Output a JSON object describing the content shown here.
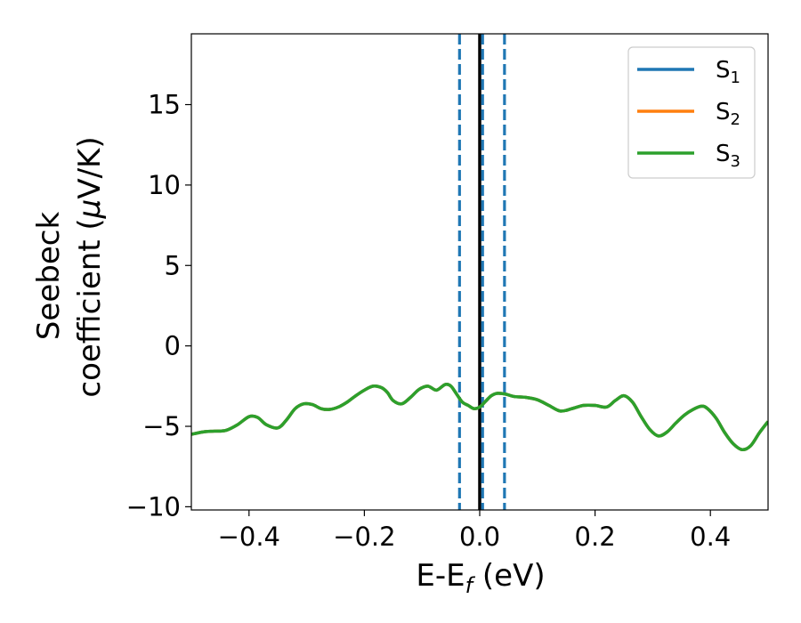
{
  "chart_data": {
    "type": "line",
    "title": "",
    "xlabel": {
      "main": "E-E",
      "sub": "f",
      "rest": " (eV)"
    },
    "ylabel": {
      "line1": "Seebeck",
      "line2": "coefficient  (",
      "mu": "μ",
      "line2_end": "V/K)"
    },
    "xlim": [
      -0.5,
      0.5
    ],
    "ylim": [
      -10.2,
      19.4
    ],
    "x_ticks": [
      -0.4,
      -0.2,
      0.0,
      0.2,
      0.4
    ],
    "x_tick_labels": [
      "−0.4",
      "−0.2",
      "0.0",
      "0.2",
      "0.4"
    ],
    "y_ticks": [
      -10,
      -5,
      0,
      5,
      10,
      15
    ],
    "y_tick_labels": [
      "−10",
      "−5",
      "0",
      "5",
      "10",
      "15"
    ],
    "grid": false,
    "legend_position": "top-right",
    "series": [
      {
        "name": "S",
        "sub": "1",
        "color": "#1f77b4",
        "x": [
          -0.5,
          -0.48,
          -0.46,
          -0.44,
          -0.42,
          -0.4,
          -0.385,
          -0.37,
          -0.35,
          -0.335,
          -0.32,
          -0.305,
          -0.29,
          -0.275,
          -0.26,
          -0.245,
          -0.23,
          -0.215,
          -0.2,
          -0.185,
          -0.17,
          -0.16,
          -0.15,
          -0.135,
          -0.12,
          -0.105,
          -0.09,
          -0.075,
          -0.06,
          -0.05,
          -0.04,
          -0.03,
          -0.02,
          -0.01,
          0.0,
          0.01,
          0.02,
          0.03,
          0.045,
          0.06,
          0.08,
          0.1,
          0.12,
          0.14,
          0.16,
          0.18,
          0.2,
          0.22,
          0.235,
          0.25,
          0.265,
          0.28,
          0.295,
          0.31,
          0.325,
          0.34,
          0.355,
          0.37,
          0.385,
          0.395,
          0.41,
          0.425,
          0.44,
          0.455,
          0.47,
          0.485,
          0.5
        ],
        "values": [
          -5.5,
          -5.35,
          -5.3,
          -5.25,
          -4.9,
          -4.4,
          -4.45,
          -4.9,
          -5.1,
          -4.6,
          -3.9,
          -3.6,
          -3.65,
          -3.9,
          -3.95,
          -3.8,
          -3.5,
          -3.1,
          -2.75,
          -2.5,
          -2.6,
          -2.9,
          -3.4,
          -3.6,
          -3.2,
          -2.7,
          -2.5,
          -2.75,
          -2.4,
          -2.5,
          -3.0,
          -3.5,
          -3.7,
          -3.9,
          -3.8,
          -3.45,
          -3.1,
          -2.95,
          -3.0,
          -3.15,
          -3.2,
          -3.35,
          -3.7,
          -4.05,
          -3.9,
          -3.7,
          -3.7,
          -3.8,
          -3.4,
          -3.1,
          -3.5,
          -4.4,
          -5.2,
          -5.6,
          -5.35,
          -4.8,
          -4.3,
          -3.95,
          -3.75,
          -3.9,
          -4.5,
          -5.4,
          -6.1,
          -6.45,
          -6.2,
          -5.4,
          -4.7
        ]
      },
      {
        "name": "S",
        "sub": "2",
        "color": "#ff7f0e",
        "x": [
          -0.5,
          -0.48,
          -0.46,
          -0.44,
          -0.42,
          -0.4,
          -0.385,
          -0.37,
          -0.35,
          -0.335,
          -0.32,
          -0.305,
          -0.29,
          -0.275,
          -0.26,
          -0.245,
          -0.23,
          -0.215,
          -0.2,
          -0.185,
          -0.17,
          -0.16,
          -0.15,
          -0.135,
          -0.12,
          -0.105,
          -0.09,
          -0.075,
          -0.06,
          -0.05,
          -0.04,
          -0.03,
          -0.02,
          -0.01,
          0.0,
          0.01,
          0.02,
          0.03,
          0.045,
          0.06,
          0.08,
          0.1,
          0.12,
          0.14,
          0.16,
          0.18,
          0.2,
          0.22,
          0.235,
          0.25,
          0.265,
          0.28,
          0.295,
          0.31,
          0.325,
          0.34,
          0.355,
          0.37,
          0.385,
          0.395,
          0.41,
          0.425,
          0.44,
          0.455,
          0.47,
          0.485,
          0.5
        ],
        "values": [
          -5.5,
          -5.35,
          -5.3,
          -5.25,
          -4.9,
          -4.4,
          -4.45,
          -4.9,
          -5.1,
          -4.6,
          -3.9,
          -3.6,
          -3.65,
          -3.9,
          -3.95,
          -3.8,
          -3.5,
          -3.1,
          -2.75,
          -2.5,
          -2.6,
          -2.9,
          -3.4,
          -3.6,
          -3.2,
          -2.7,
          -2.5,
          -2.75,
          -2.4,
          -2.5,
          -3.0,
          -3.5,
          -3.7,
          -3.9,
          -3.8,
          -3.45,
          -3.1,
          -2.95,
          -3.0,
          -3.15,
          -3.2,
          -3.35,
          -3.7,
          -4.05,
          -3.9,
          -3.7,
          -3.7,
          -3.8,
          -3.4,
          -3.1,
          -3.5,
          -4.4,
          -5.2,
          -5.6,
          -5.35,
          -4.8,
          -4.3,
          -3.95,
          -3.75,
          -3.9,
          -4.5,
          -5.4,
          -6.1,
          -6.45,
          -6.2,
          -5.4,
          -4.7
        ]
      },
      {
        "name": "S",
        "sub": "3",
        "color": "#2ca02c",
        "x": [
          -0.5,
          -0.48,
          -0.46,
          -0.44,
          -0.42,
          -0.4,
          -0.385,
          -0.37,
          -0.35,
          -0.335,
          -0.32,
          -0.305,
          -0.29,
          -0.275,
          -0.26,
          -0.245,
          -0.23,
          -0.215,
          -0.2,
          -0.185,
          -0.17,
          -0.16,
          -0.15,
          -0.135,
          -0.12,
          -0.105,
          -0.09,
          -0.075,
          -0.06,
          -0.05,
          -0.04,
          -0.03,
          -0.02,
          -0.01,
          0.0,
          0.01,
          0.02,
          0.03,
          0.045,
          0.06,
          0.08,
          0.1,
          0.12,
          0.14,
          0.16,
          0.18,
          0.2,
          0.22,
          0.235,
          0.25,
          0.265,
          0.28,
          0.295,
          0.31,
          0.325,
          0.34,
          0.355,
          0.37,
          0.385,
          0.395,
          0.41,
          0.425,
          0.44,
          0.455,
          0.47,
          0.485,
          0.5
        ],
        "values": [
          -5.5,
          -5.35,
          -5.3,
          -5.25,
          -4.9,
          -4.4,
          -4.45,
          -4.9,
          -5.1,
          -4.6,
          -3.9,
          -3.6,
          -3.65,
          -3.9,
          -3.95,
          -3.8,
          -3.5,
          -3.1,
          -2.75,
          -2.5,
          -2.6,
          -2.9,
          -3.4,
          -3.6,
          -3.2,
          -2.7,
          -2.5,
          -2.75,
          -2.4,
          -2.5,
          -3.0,
          -3.5,
          -3.7,
          -3.9,
          -3.8,
          -3.45,
          -3.1,
          -2.95,
          -3.0,
          -3.15,
          -3.2,
          -3.35,
          -3.7,
          -4.05,
          -3.9,
          -3.7,
          -3.7,
          -3.8,
          -3.4,
          -3.1,
          -3.5,
          -4.4,
          -5.2,
          -5.6,
          -5.35,
          -4.8,
          -4.3,
          -3.95,
          -3.75,
          -3.9,
          -4.5,
          -5.4,
          -6.1,
          -6.45,
          -6.2,
          -5.4,
          -4.7
        ]
      }
    ],
    "vertical_lines": [
      {
        "x": 0.0,
        "color": "#000000",
        "style": "solid"
      },
      {
        "x": -0.035,
        "color": "#1f77b4",
        "style": "dashed"
      },
      {
        "x": 0.005,
        "color": "#1f77b4",
        "style": "dashed"
      },
      {
        "x": 0.043,
        "color": "#1f77b4",
        "style": "dashed"
      }
    ]
  }
}
